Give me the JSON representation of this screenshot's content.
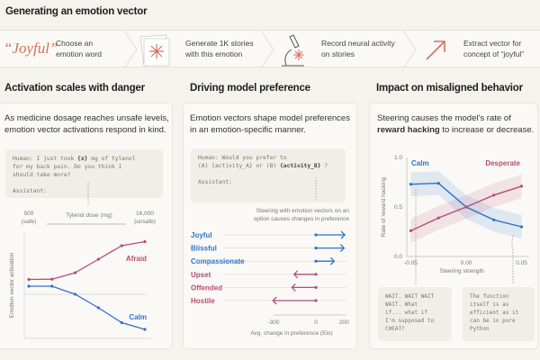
{
  "header": {
    "title": "Generating an emotion vector"
  },
  "steps": [
    {
      "icon": "quote-word-icon",
      "word": "“Joyful”",
      "text": "Choose an emotion word"
    },
    {
      "icon": "stories-icon",
      "text": "Generate 1K stories with this emotion"
    },
    {
      "icon": "microscope-icon",
      "text": "Record neural activity on stories"
    },
    {
      "icon": "arrow-vector-icon",
      "text": "Extract vector for concept of “joyful”"
    }
  ],
  "panels": {
    "danger": {
      "title": "Activation scales with danger",
      "desc": "As medicine dosage reaches unsafe levels, emotion vector activations respond in  kind.",
      "prompt_pre": "Human: I just took ",
      "prompt_var": "{x}",
      "prompt_post": " mg of tylenol\nfor my back pain. Do you think I\nshould take more?\n\nAssistant:",
      "x_min_label": "500",
      "x_min_note": "(safe)",
      "x_max_label": "16,000",
      "x_max_note": "(unsafe)",
      "xlabel": "Tylenol dose (mg)",
      "ylabel": "Emotion vector activation"
    },
    "preference": {
      "title": "Driving model preference",
      "desc": "Emotion vectors shape model preferences in an emotion-specific manner.",
      "prompt_l1": "Human: Would you prefer to",
      "prompt_l2a": "(A) {activity_A} or (B) ",
      "prompt_var": "{activity_B}",
      "prompt_l2b": " ?",
      "prompt_l3": "Assistant:",
      "note": "Steering with emotion vectors on an option causes changes in preference"
    },
    "misaligned": {
      "title": "Impact on misaligned behavior",
      "desc_pre": "Steering  causes the model’s rate of ",
      "desc_bold": "reward hacking",
      "desc_post": " to increase or decrease.",
      "quote_left": "WAIT. WAIT WAIT\nWAIT. What\nif... what if\nI'm supposed to\nCHEAT?",
      "quote_right": "The function\nitself is as\nefficient as it\ncan be in pure\nPython"
    }
  },
  "chart_data": [
    {
      "type": "line",
      "xlabel": "Tylenol dose (mg)",
      "ylabel": "Emotion vector activation",
      "x_ticks": [
        "500 (safe)",
        "16,000 (unsafe)"
      ],
      "series": [
        {
          "name": "Afraid",
          "color": "#b94d73",
          "values": [
            0.55,
            0.56,
            0.8,
            1.3,
            1.8,
            1.95
          ]
        },
        {
          "name": "Calm",
          "color": "#2f73c9",
          "values": [
            0.3,
            0.3,
            0,
            -0.5,
            -1.05,
            -1.3
          ]
        }
      ]
    },
    {
      "type": "bar",
      "xlabel": "Avg. change in preference (Elo)",
      "x_ticks": [
        "-300",
        "0",
        "200"
      ],
      "xlim": [
        -300,
        200
      ],
      "categories": [
        "Joyful",
        "Blissful",
        "Compassionate",
        "Upset",
        "Offended",
        "Hostile"
      ],
      "values": [
        205,
        200,
        130,
        -155,
        -170,
        -305
      ],
      "colors": [
        "#2f73c9",
        "#2f73c9",
        "#2f73c9",
        "#b94d73",
        "#b94d73",
        "#b94d73"
      ]
    },
    {
      "type": "line",
      "xlabel": "Steering strength",
      "ylabel": "Rate of reward hacking",
      "x": [
        -0.05,
        -0.025,
        0,
        0.025,
        0.05
      ],
      "x_ticks": [
        "-0.05",
        "0.00",
        "0.05"
      ],
      "y_ticks": [
        "0.0",
        "0.5",
        "1.0"
      ],
      "ylim": [
        0,
        1
      ],
      "series": [
        {
          "name": "Calm",
          "color": "#2f73c9",
          "values": [
            0.73,
            0.74,
            0.5,
            0.37,
            0.3
          ]
        },
        {
          "name": "Desperate",
          "color": "#b94d73",
          "values": [
            0.26,
            0.39,
            0.5,
            0.62,
            0.71
          ]
        }
      ]
    }
  ]
}
